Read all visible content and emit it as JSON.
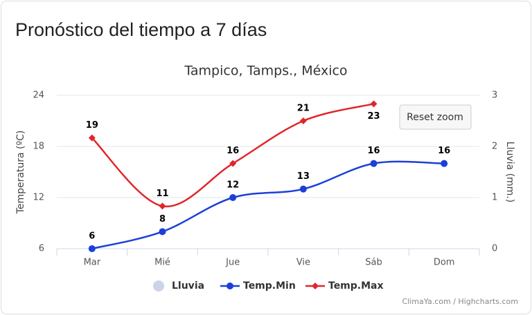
{
  "header": {
    "title": "Pronóstico del tiempo a 7 días"
  },
  "chart_data": {
    "type": "line",
    "title": "Tampico, Tamps., México",
    "categories": [
      "Mar",
      "Mié",
      "Jue",
      "Vie",
      "Sáb",
      "Dom"
    ],
    "ylabel": "Temperatura (ºC)",
    "y2label": "Lluvia (mm.)",
    "ylim": [
      6,
      24
    ],
    "yticks": [
      6,
      12,
      18,
      24
    ],
    "y2lim": [
      0,
      3
    ],
    "y2ticks": [
      0,
      1,
      2,
      3
    ],
    "grid": true,
    "legend": "bottom",
    "series": [
      {
        "name": "Lluvia",
        "color": "#ccd3ea",
        "axis": "y2",
        "values": [
          null,
          null,
          null,
          null,
          null,
          null
        ]
      },
      {
        "name": "Temp.Min",
        "color": "#1b3fd8",
        "values": [
          6,
          8,
          12,
          13,
          16,
          16
        ]
      },
      {
        "name": "Temp.Max",
        "color": "#e0262b",
        "values": [
          19,
          11,
          16,
          21,
          23,
          null
        ]
      }
    ],
    "reset_button": "Reset zoom",
    "credits": "ClimaYa.com / Highcharts.com"
  }
}
